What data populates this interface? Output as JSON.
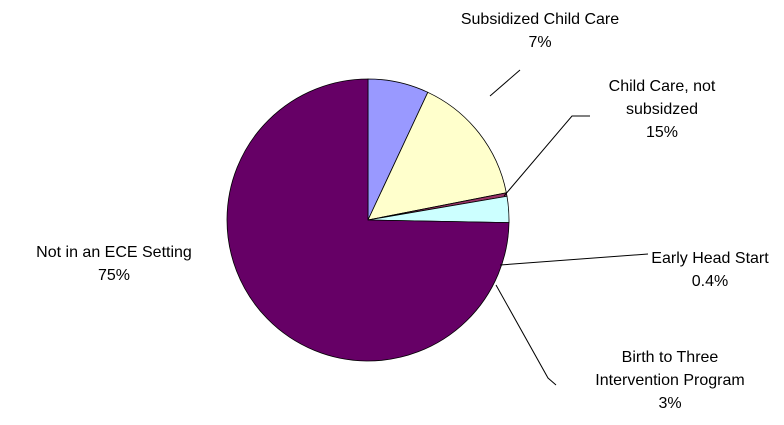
{
  "chart_data": {
    "type": "pie",
    "title": "",
    "start_angle_deg": 90,
    "direction": "clockwise",
    "slices": [
      {
        "label": [
          "Subsidized Child Care"
        ],
        "percent_label": "7%",
        "value": 7,
        "color": "#9999FF"
      },
      {
        "label": [
          "Child Care, not",
          "subsidzed"
        ],
        "percent_label": "15%",
        "value": 15,
        "color": "#FFFFCC"
      },
      {
        "label": [
          "Early Head Start"
        ],
        "percent_label": "0.4%",
        "value": 0.4,
        "color": "#993366"
      },
      {
        "label": [
          "Birth to Three",
          "Intervention Program"
        ],
        "percent_label": "3%",
        "value": 3,
        "color": "#CCFFFF"
      },
      {
        "label": [
          "Not in an ECE Setting"
        ],
        "percent_label": "75%",
        "value": 75,
        "color": "#660066"
      }
    ]
  }
}
